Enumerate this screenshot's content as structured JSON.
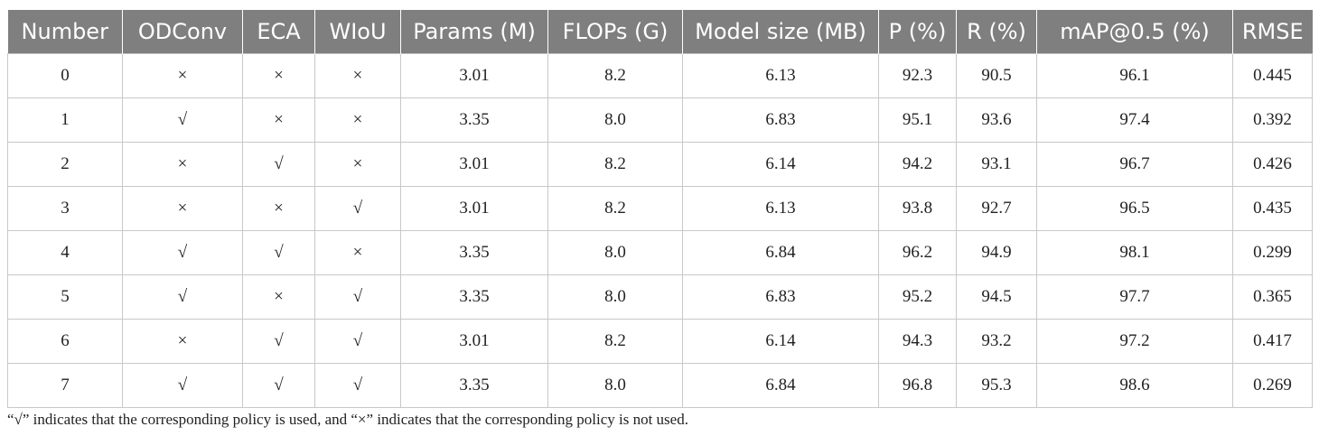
{
  "table": {
    "headers": [
      "Number",
      "ODConv",
      "ECA",
      "WIoU",
      "Params (M)",
      "FLOPs (G)",
      "Model size (MB)",
      "P (%)",
      "R (%)",
      "mAP@0.5 (%)",
      "RMSE"
    ],
    "rows": [
      [
        "0",
        "×",
        "×",
        "×",
        "3.01",
        "8.2",
        "6.13",
        "92.3",
        "90.5",
        "96.1",
        "0.445"
      ],
      [
        "1",
        "√",
        "×",
        "×",
        "3.35",
        "8.0",
        "6.83",
        "95.1",
        "93.6",
        "97.4",
        "0.392"
      ],
      [
        "2",
        "×",
        "√",
        "×",
        "3.01",
        "8.2",
        "6.14",
        "94.2",
        "93.1",
        "96.7",
        "0.426"
      ],
      [
        "3",
        "×",
        "×",
        "√",
        "3.01",
        "8.2",
        "6.13",
        "93.8",
        "92.7",
        "96.5",
        "0.435"
      ],
      [
        "4",
        "√",
        "√",
        "×",
        "3.35",
        "8.0",
        "6.84",
        "96.2",
        "94.9",
        "98.1",
        "0.299"
      ],
      [
        "5",
        "√",
        "×",
        "√",
        "3.35",
        "8.0",
        "6.83",
        "95.2",
        "94.5",
        "97.7",
        "0.365"
      ],
      [
        "6",
        "×",
        "√",
        "√",
        "3.01",
        "8.2",
        "6.14",
        "94.3",
        "93.2",
        "97.2",
        "0.417"
      ],
      [
        "7",
        "√",
        "√",
        "√",
        "3.35",
        "8.0",
        "6.84",
        "96.8",
        "95.3",
        "98.6",
        "0.269"
      ]
    ]
  },
  "footnote": "“√” indicates that the corresponding policy is used, and “×” indicates that the corresponding policy is not used.",
  "colors": {
    "header_bg": "#7f7f7f",
    "header_text": "#ffffff",
    "grid": "#c8c8c8"
  }
}
